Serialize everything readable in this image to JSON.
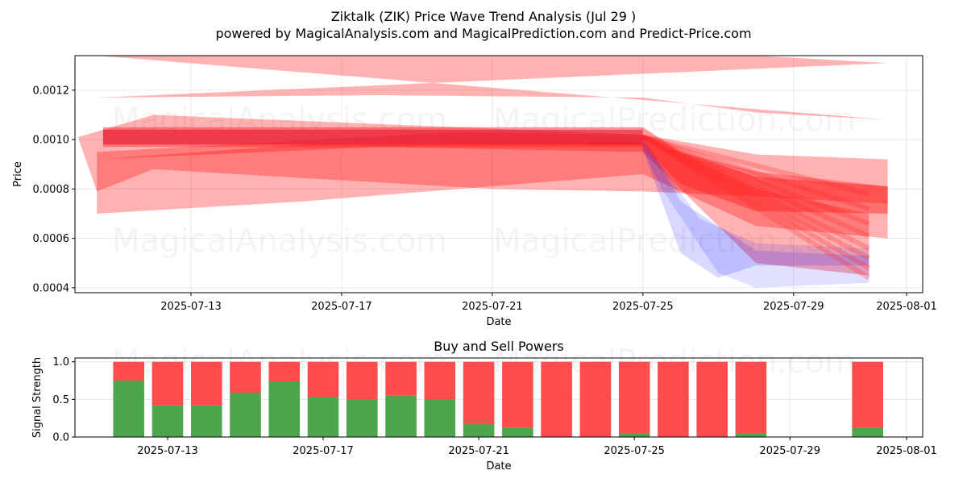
{
  "title": "Ziktalk (ZIK) Price Wave Trend Analysis (Jul 29 )",
  "subtitle": "powered by MagicalAnalysis.com and MagicalPrediction.com and Predict-Price.com",
  "watermarks": [
    "MagicalAnalysis.com",
    "MagicalPrediction.com"
  ],
  "chart_data": [
    {
      "type": "area",
      "xlabel": "Date",
      "ylabel": "Price",
      "x_ticks": [
        "2025-07-13",
        "2025-07-17",
        "2025-07-21",
        "2025-07-25",
        "2025-07-29",
        "2025-08-01"
      ],
      "x_range": [
        "2025-07-10",
        "2025-08-01"
      ],
      "y_ticks": [
        0.0004,
        0.0006,
        0.0008,
        0.001,
        0.0012
      ],
      "y_tick_labels": [
        "0.0004",
        "0.0006",
        "0.0008",
        "0.0010",
        "0.0012"
      ],
      "ylim": [
        0.00038,
        0.00134
      ],
      "grid": true,
      "colors": {
        "red_band": "#ff0000",
        "blue_band": "#0000ff"
      },
      "bands": [
        {
          "color": "red",
          "opacity": 0.3,
          "upper": [
            [
              "2025-07-10T12:00",
              0.00134
            ],
            [
              "2025-07-25",
              0.00134
            ],
            [
              "2025-07-28",
              0.00134
            ],
            [
              "2025-07-31T12:00",
              0.00131
            ]
          ],
          "lower": [
            [
              "2025-07-10T12:00",
              0.00117
            ],
            [
              "2025-07-18",
              0.00118
            ],
            [
              "2025-07-25",
              0.00117
            ],
            [
              "2025-07-28",
              0.00111
            ],
            [
              "2025-07-31T12:00",
              0.00108
            ]
          ]
        },
        {
          "color": "red",
          "opacity": 0.3,
          "upper": [
            [
              "2025-07-10",
              0.00101
            ],
            [
              "2025-07-12",
              0.0011
            ],
            [
              "2025-07-25",
              0.00102
            ],
            [
              "2025-07-28",
              0.00094
            ],
            [
              "2025-07-31T12:00",
              0.00092
            ]
          ],
          "lower": [
            [
              "2025-07-31T12:00",
              0.00074
            ],
            [
              "2025-07-28",
              0.00077
            ],
            [
              "2025-07-25",
              0.00079
            ],
            [
              "2025-07-21",
              0.0008
            ],
            [
              "2025-07-12",
              0.00088
            ],
            [
              "2025-07-10T12:00",
              0.00079
            ]
          ]
        },
        {
          "color": "red",
          "opacity": 0.3,
          "upper": [
            [
              "2025-07-10T12:00",
              0.00092
            ],
            [
              "2025-07-16",
              0.00098
            ],
            [
              "2025-07-25",
              0.00099
            ],
            [
              "2025-07-28",
              0.00087
            ],
            [
              "2025-07-31T12:00",
              0.00081
            ]
          ],
          "lower": [
            [
              "2025-07-31T12:00",
              0.0006
            ],
            [
              "2025-07-28",
              0.00065
            ],
            [
              "2025-07-25",
              0.00086
            ],
            [
              "2025-07-16",
              0.00075
            ],
            [
              "2025-07-10T12:00",
              0.0007
            ]
          ]
        },
        {
          "color": "red",
          "opacity": 0.3,
          "upper": [
            [
              "2025-07-10T12:00",
              0.00095
            ],
            [
              "2025-07-20",
              0.00103
            ],
            [
              "2025-07-25",
              0.00102
            ],
            [
              "2025-07-28",
              0.0008
            ],
            [
              "2025-07-31",
              0.0007
            ]
          ],
          "lower": [
            [
              "2025-07-31",
              0.00045
            ],
            [
              "2025-07-28",
              0.0005
            ],
            [
              "2025-07-25",
              0.00095
            ],
            [
              "2025-07-18",
              0.00097
            ],
            [
              "2025-07-10T12:00",
              0.00092
            ]
          ]
        },
        {
          "color": "blue",
          "opacity": 0.15,
          "upper": [
            [
              "2025-07-25",
              0.00102
            ],
            [
              "2025-07-26",
              0.00075
            ],
            [
              "2025-07-28",
              0.00055
            ],
            [
              "2025-07-31",
              0.00053
            ]
          ],
          "lower": [
            [
              "2025-07-31",
              0.00049
            ],
            [
              "2025-07-28",
              0.00049
            ],
            [
              "2025-07-27",
              0.00044
            ],
            [
              "2025-07-26",
              0.00054
            ],
            [
              "2025-07-25",
              0.00096
            ]
          ]
        },
        {
          "color": "blue",
          "opacity": 0.12,
          "upper": [
            [
              "2025-07-25",
              0.001
            ],
            [
              "2025-07-26T12:00",
              0.00068
            ],
            [
              "2025-07-28",
              0.00058
            ],
            [
              "2025-07-31",
              0.00056
            ]
          ],
          "lower": [
            [
              "2025-07-31",
              0.00042
            ],
            [
              "2025-07-28",
              0.0004
            ],
            [
              "2025-07-27",
              0.00046
            ],
            [
              "2025-07-25T12:00",
              0.0008
            ],
            [
              "2025-07-25",
              0.00096
            ]
          ]
        }
      ],
      "central_band": {
        "color": "red",
        "upper": [
          [
            "2025-07-10T16:00",
            0.00105
          ],
          [
            "2025-07-25",
            0.00105
          ],
          [
            "2025-07-26",
            0.00095
          ],
          [
            "2025-07-28",
            0.00085
          ],
          [
            "2025-07-31T12:00",
            0.00081
          ]
        ],
        "lower": [
          [
            "2025-07-31T12:00",
            0.0007
          ],
          [
            "2025-07-28",
            0.00071
          ],
          [
            "2025-07-26",
            0.00082
          ],
          [
            "2025-07-25",
            0.00097
          ],
          [
            "2025-07-10T16:00",
            0.00097
          ]
        ]
      },
      "fan_lines": [
        {
          "end_date": "2025-07-31",
          "end_value": 0.00078
        },
        {
          "end_date": "2025-07-31",
          "end_value": 0.00072
        },
        {
          "end_date": "2025-07-31",
          "end_value": 0.00066
        },
        {
          "end_date": "2025-07-31",
          "end_value": 0.00061
        },
        {
          "end_date": "2025-07-31",
          "end_value": 0.00056
        },
        {
          "end_date": "2025-07-31",
          "end_value": 0.00052
        },
        {
          "end_date": "2025-07-31",
          "end_value": 0.00048
        },
        {
          "end_date": "2025-07-31",
          "end_value": 0.00044
        }
      ]
    },
    {
      "type": "bar",
      "title": "Buy and Sell Powers",
      "xlabel": "Date",
      "ylabel": "Signal Strength",
      "x_ticks": [
        "2025-07-13",
        "2025-07-17",
        "2025-07-21",
        "2025-07-25",
        "2025-07-29",
        "2025-08-01"
      ],
      "y_ticks": [
        0.0,
        0.5,
        1.0
      ],
      "y_tick_labels": [
        "0.0",
        "0.5",
        "1.0"
      ],
      "ylim": [
        0,
        1.05
      ],
      "grid": true,
      "colors": {
        "buy": "#4ca64c",
        "sell": "#ff4c4c"
      },
      "categories": [
        "2025-07-12",
        "2025-07-13",
        "2025-07-14",
        "2025-07-15",
        "2025-07-16",
        "2025-07-17",
        "2025-07-18",
        "2025-07-19",
        "2025-07-20",
        "2025-07-21",
        "2025-07-22",
        "2025-07-23",
        "2025-07-24",
        "2025-07-25",
        "2025-07-26",
        "2025-07-27",
        "2025-07-28",
        "2025-07-31"
      ],
      "series": [
        {
          "name": "Buy",
          "values": [
            0.75,
            0.42,
            0.42,
            0.59,
            0.74,
            0.53,
            0.5,
            0.55,
            0.5,
            0.17,
            0.12,
            0.0,
            0.0,
            0.05,
            0.0,
            0.0,
            0.05,
            0.12
          ]
        },
        {
          "name": "Sell",
          "values": [
            0.25,
            0.58,
            0.58,
            0.41,
            0.26,
            0.47,
            0.5,
            0.45,
            0.5,
            0.83,
            0.88,
            1.0,
            1.0,
            0.95,
            1.0,
            1.0,
            0.95,
            0.88
          ]
        }
      ]
    }
  ]
}
